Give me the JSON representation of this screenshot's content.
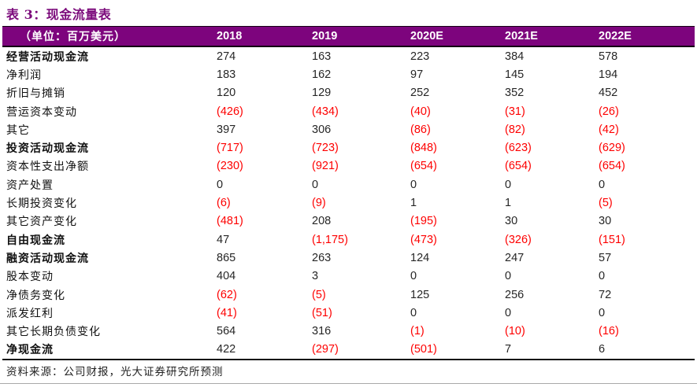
{
  "title": "表 3：现金流量表",
  "table": {
    "unit_label": "（单位：百万美元）",
    "columns": [
      "2018",
      "2019",
      "2020E",
      "2021E",
      "2022E"
    ],
    "rows": [
      {
        "label": "经营活动现金流",
        "bold": true,
        "values": [
          "274",
          "163",
          "223",
          "384",
          "578"
        ]
      },
      {
        "label": "净利润",
        "bold": false,
        "values": [
          "183",
          "162",
          "97",
          "145",
          "194"
        ]
      },
      {
        "label": "折旧与摊销",
        "bold": false,
        "values": [
          "120",
          "129",
          "252",
          "352",
          "452"
        ]
      },
      {
        "label": "营运资本变动",
        "bold": false,
        "values": [
          "(426)",
          "(434)",
          "(40)",
          "(31)",
          "(26)"
        ]
      },
      {
        "label": "其它",
        "bold": false,
        "values": [
          "397",
          "306",
          "(86)",
          "(82)",
          "(42)"
        ]
      },
      {
        "label": "投资活动现金流",
        "bold": true,
        "values": [
          "(717)",
          "(723)",
          "(848)",
          "(623)",
          "(629)"
        ]
      },
      {
        "label": "资本性支出净额",
        "bold": false,
        "values": [
          "(230)",
          "(921)",
          "(654)",
          "(654)",
          "(654)"
        ]
      },
      {
        "label": "资产处置",
        "bold": false,
        "values": [
          "0",
          "0",
          "0",
          "0",
          "0"
        ]
      },
      {
        "label": "长期投资变化",
        "bold": false,
        "values": [
          "(6)",
          "(9)",
          "1",
          "1",
          "(5)"
        ]
      },
      {
        "label": "其它资产变化",
        "bold": false,
        "values": [
          "(481)",
          "208",
          "(195)",
          "30",
          "30"
        ]
      },
      {
        "label": "自由现金流",
        "bold": true,
        "values": [
          "47",
          "(1,175)",
          "(473)",
          "(326)",
          "(151)"
        ]
      },
      {
        "label": "融资活动现金流",
        "bold": true,
        "values": [
          "865",
          "263",
          "124",
          "247",
          "57"
        ]
      },
      {
        "label": "股本变动",
        "bold": false,
        "values": [
          "404",
          "3",
          "0",
          "0",
          "0"
        ]
      },
      {
        "label": "净债务变化",
        "bold": false,
        "values": [
          "(62)",
          "(5)",
          "125",
          "256",
          "72"
        ]
      },
      {
        "label": "派发红利",
        "bold": false,
        "values": [
          "(41)",
          "(51)",
          "0",
          "0",
          "0"
        ]
      },
      {
        "label": "其它长期负债变化",
        "bold": false,
        "values": [
          "564",
          "316",
          "(1)",
          "(10)",
          "(16)"
        ]
      },
      {
        "label": "净现金流",
        "bold": true,
        "values": [
          "422",
          "(297)",
          "(501)",
          "7",
          "6"
        ]
      }
    ]
  },
  "footer": {
    "source": "资料来源：公司财报，光大证券研究所预测"
  },
  "colors": {
    "band_background": "#7D047D",
    "title_text": "#7B0A7B",
    "negative_value": "#FE0000",
    "positive_value": "#262626",
    "header_text": "#FFFFFF"
  }
}
